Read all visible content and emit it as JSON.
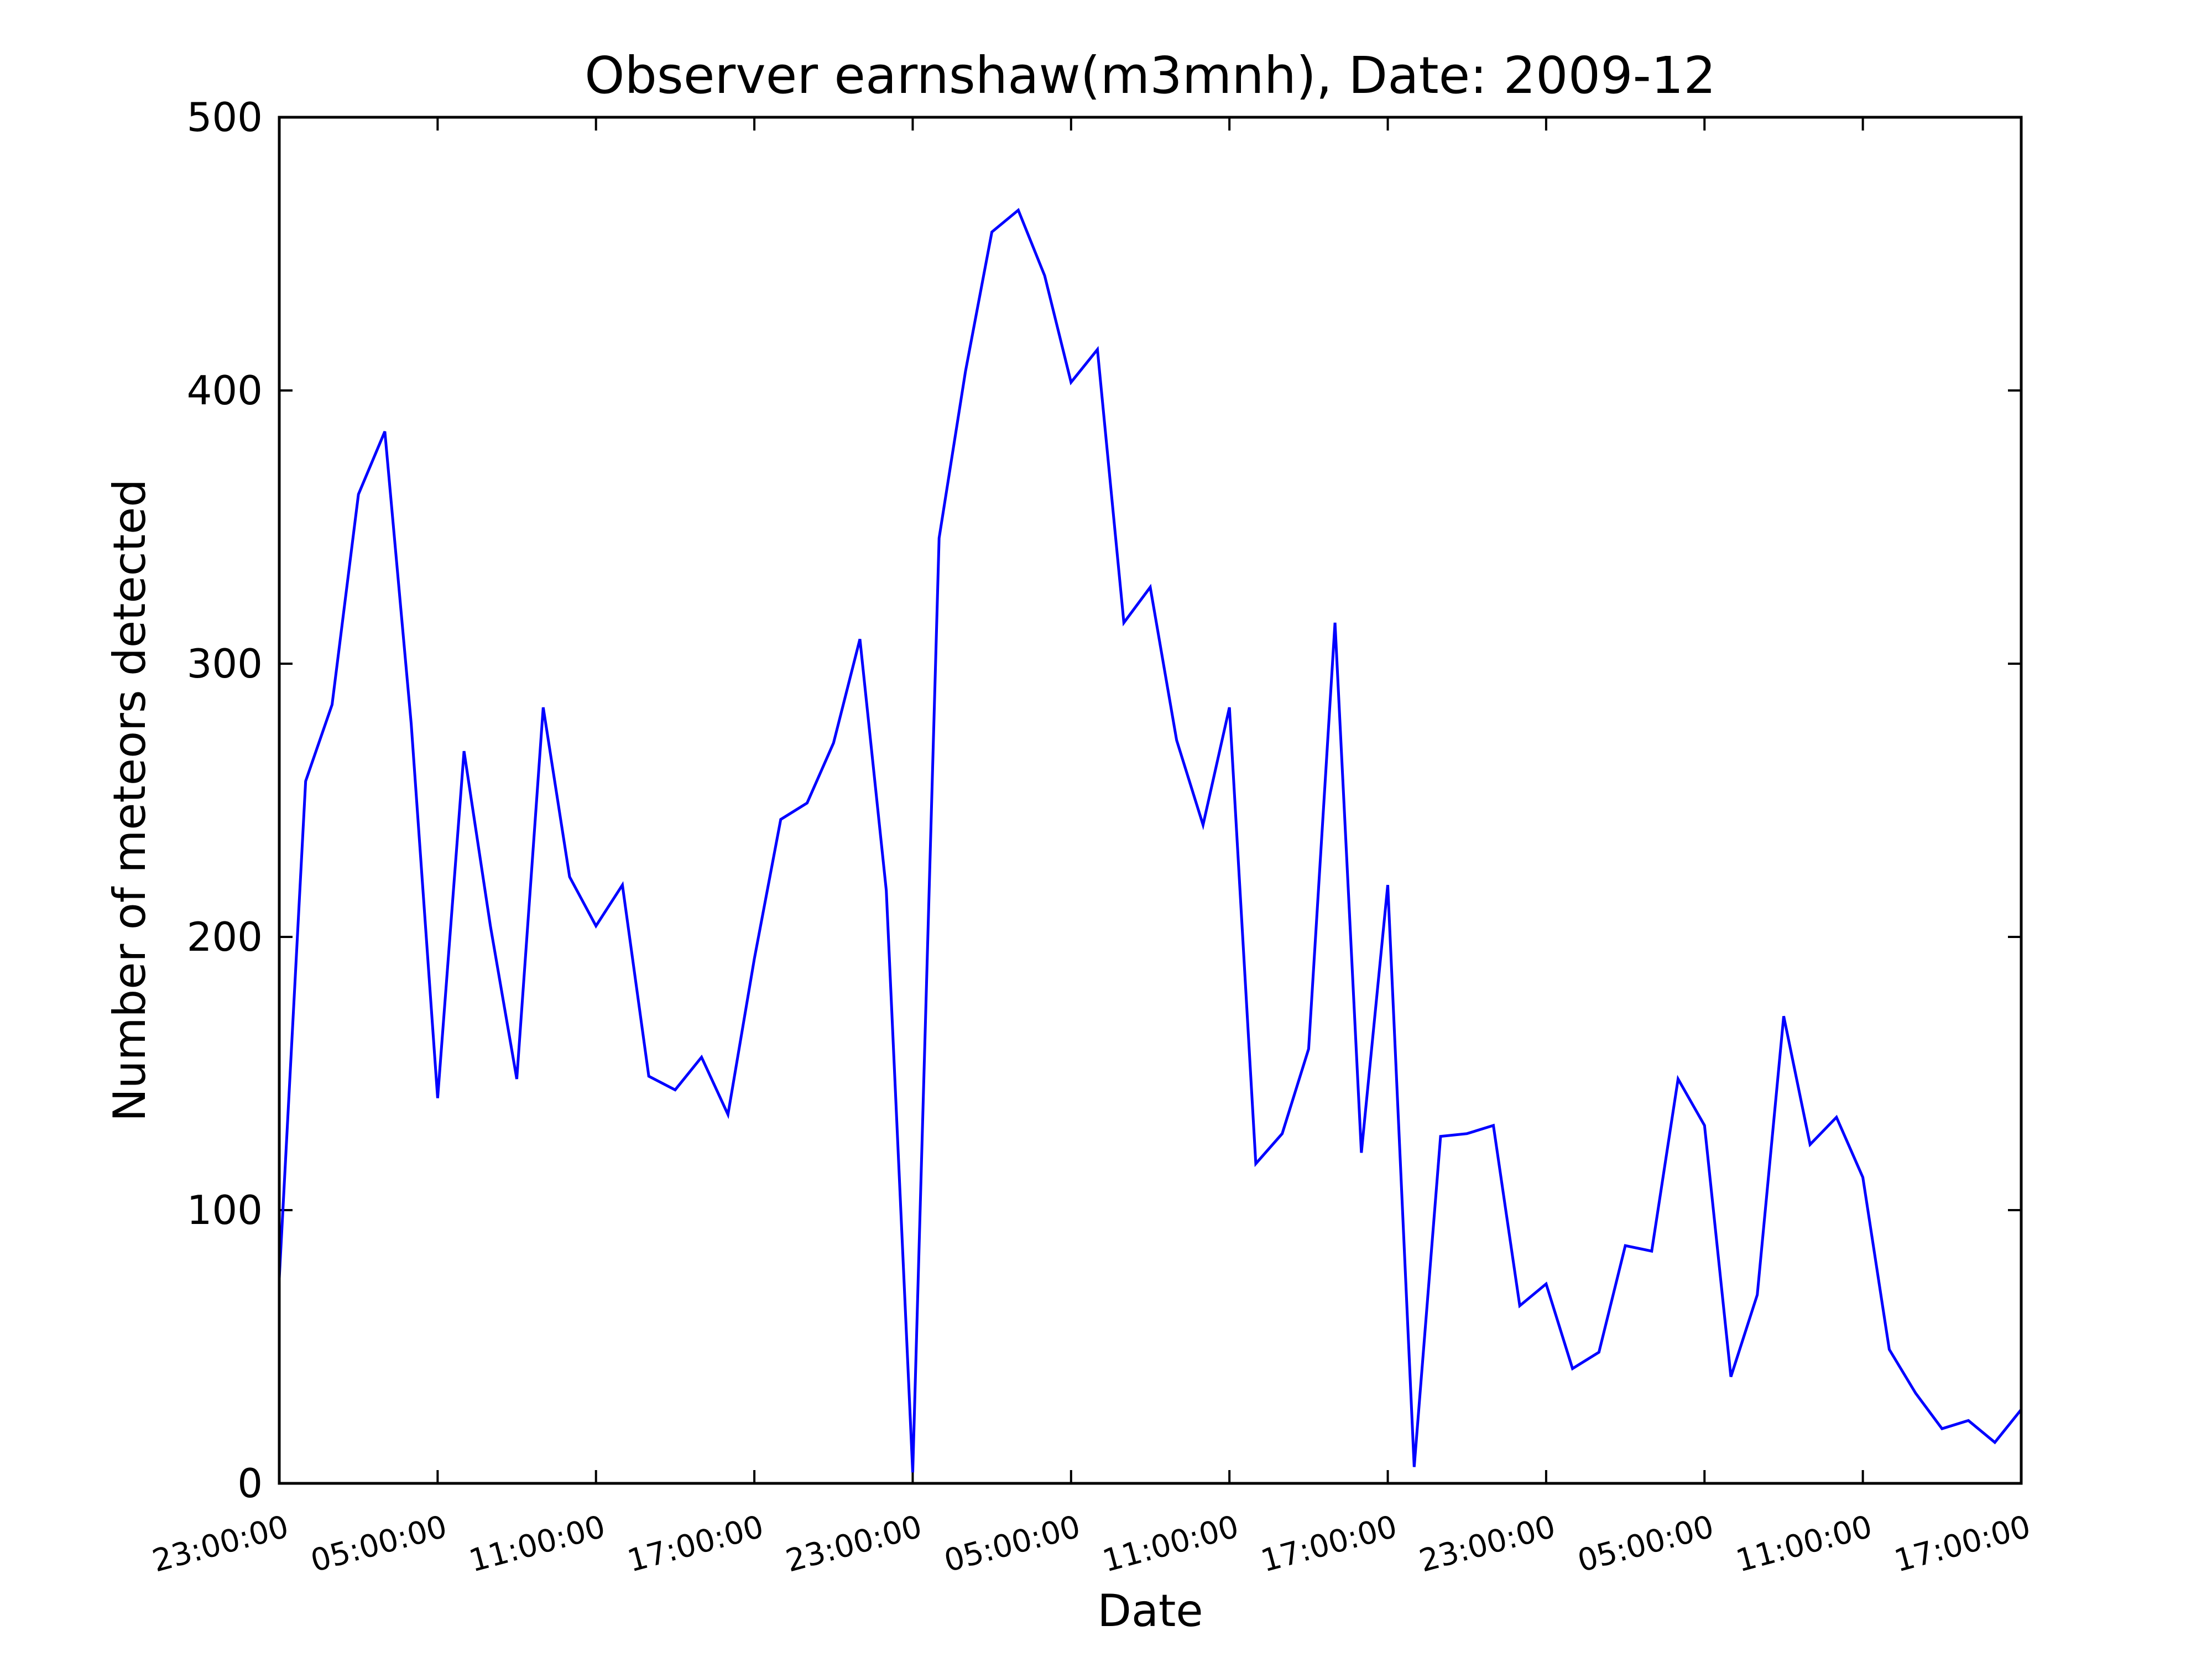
{
  "chart_data": {
    "type": "line",
    "title": "Observer earnshaw(m3mnh), Date: 2009-12",
    "xlabel": "Date",
    "ylabel": "Number of meteors detected",
    "ylim": [
      0,
      500
    ],
    "xlim": [
      0,
      66
    ],
    "x_ticks": [
      {
        "x": 0,
        "label": "23:00:00"
      },
      {
        "x": 6,
        "label": "05:00:00"
      },
      {
        "x": 12,
        "label": "11:00:00"
      },
      {
        "x": 18,
        "label": "17:00:00"
      },
      {
        "x": 24,
        "label": "23:00:00"
      },
      {
        "x": 30,
        "label": "05:00:00"
      },
      {
        "x": 36,
        "label": "11:00:00"
      },
      {
        "x": 42,
        "label": "17:00:00"
      },
      {
        "x": 48,
        "label": "23:00:00"
      },
      {
        "x": 54,
        "label": "05:00:00"
      },
      {
        "x": 60,
        "label": "11:00:00"
      },
      {
        "x": 66,
        "label": "17:00:00"
      }
    ],
    "y_ticks": [
      0,
      100,
      200,
      300,
      400,
      500
    ],
    "grid": false,
    "series": [
      {
        "color": "#0000ff",
        "values": [
          75,
          257,
          285,
          362,
          385,
          278,
          141,
          268,
          204,
          148,
          284,
          222,
          204,
          219,
          149,
          144,
          156,
          135,
          192,
          243,
          249,
          271,
          309,
          217,
          4,
          346,
          407,
          458,
          466,
          442,
          403,
          415,
          315,
          328,
          272,
          241,
          284,
          117,
          128,
          159,
          315,
          121,
          219,
          6,
          127,
          128,
          131,
          65,
          73,
          42,
          48,
          87,
          85,
          148,
          131,
          39,
          69,
          171,
          124,
          134,
          112,
          49,
          33,
          20,
          23,
          15,
          27
        ]
      }
    ]
  }
}
